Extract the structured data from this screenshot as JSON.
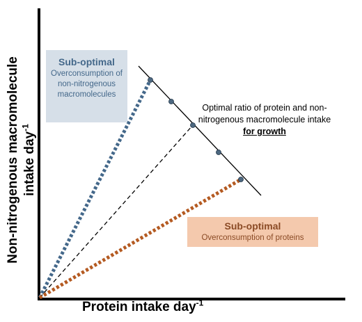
{
  "axes": {
    "y_label": "Non-nitrogenous macromolecule  intake day",
    "y_label_sup": "-1",
    "x_label": "Protein intake day",
    "x_label_sup": "-1"
  },
  "top_box": {
    "title": "Sub-optimal",
    "body": "Overconsumption of non-nitrogenous macromolecules"
  },
  "bottom_box": {
    "title": "Sub-optimal",
    "body": "Overconsumption of proteins"
  },
  "optimal_label": {
    "line": "Optimal ratio of protein and non-nitrogenous macromolecule intake",
    "emphasis": "for growth"
  },
  "colors": {
    "blue": "#44688a",
    "orange": "#b45a21",
    "point": "#4d6880"
  }
}
